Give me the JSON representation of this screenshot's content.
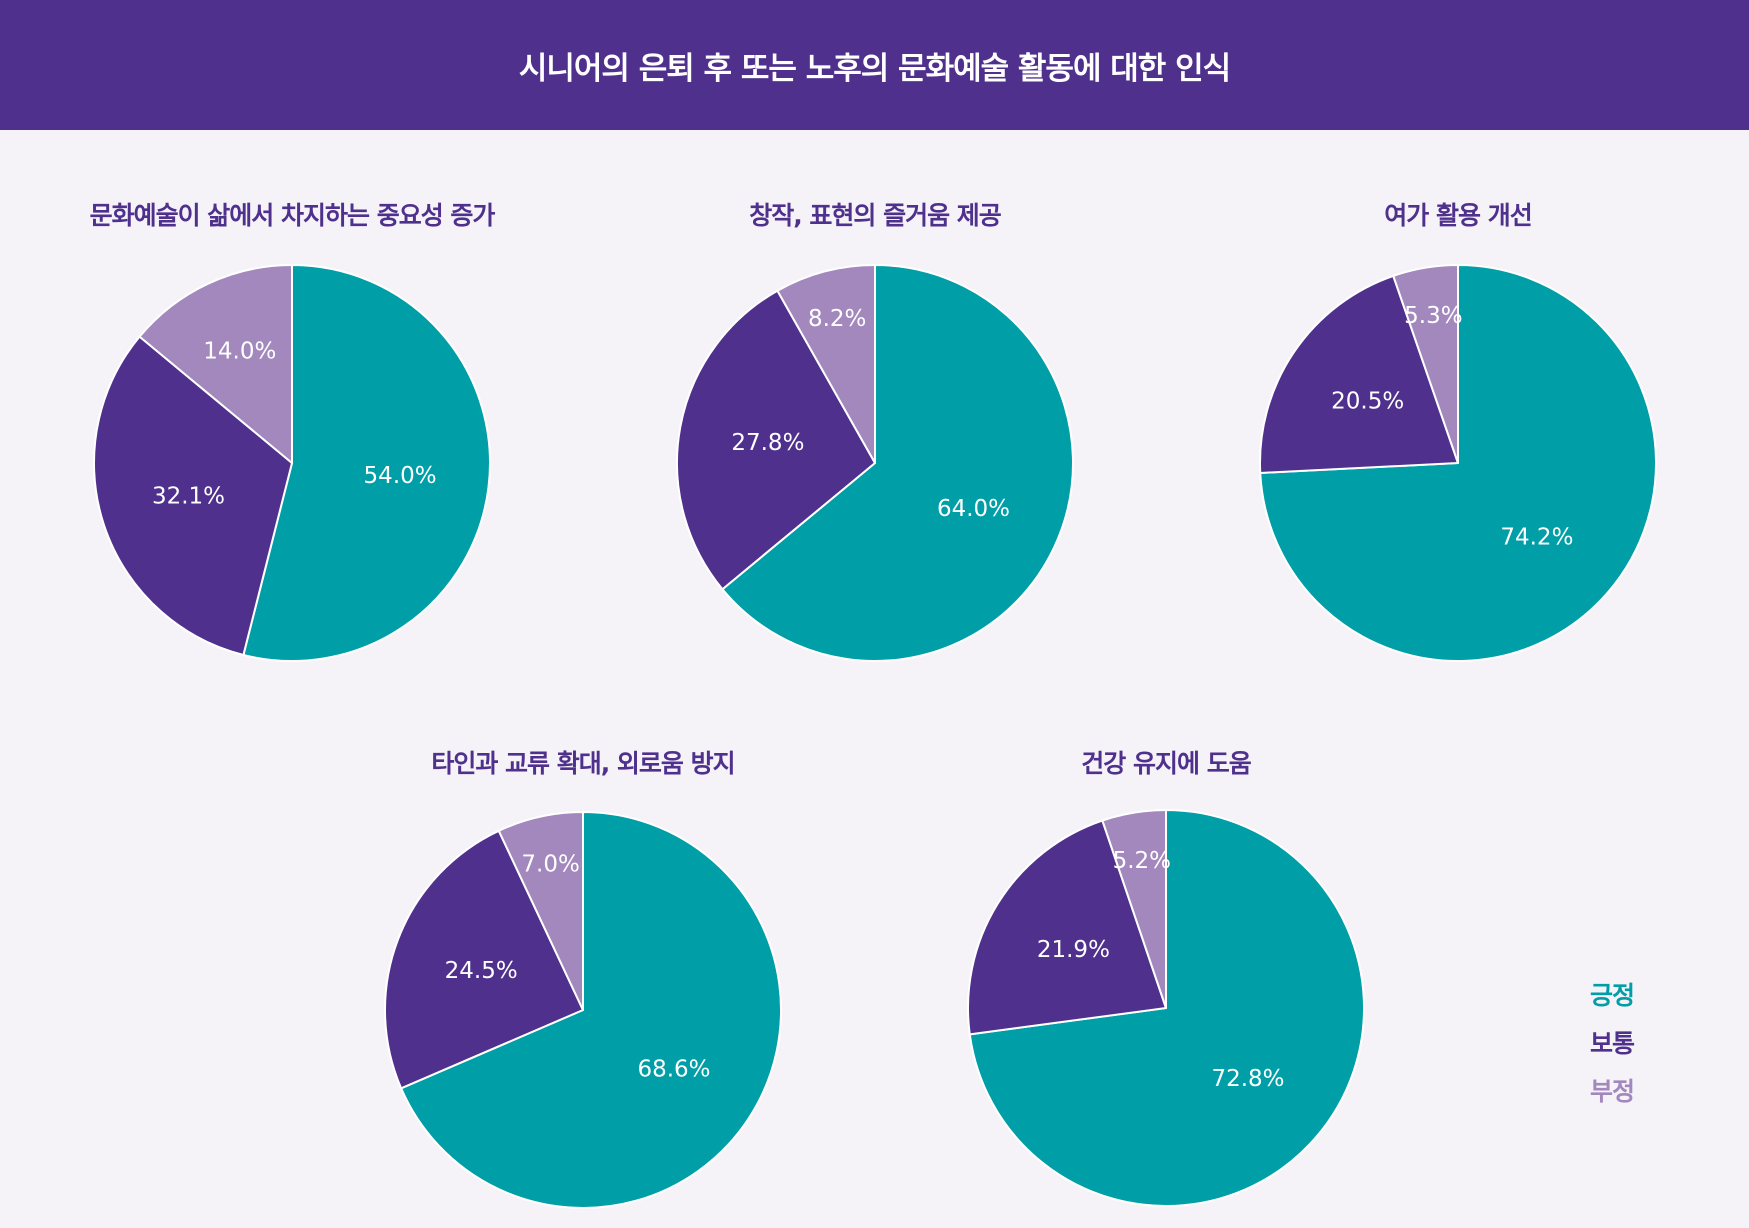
{
  "header": {
    "title": "시니어의 은퇴 후 또는 노후의 문화예술 활동에 대한 인식"
  },
  "colors": {
    "header_bg": "#4f318d",
    "background": "#f5f3f8",
    "positive": "#009ea7",
    "neutral": "#4f318d",
    "negative": "#a388bd",
    "title_text": "#4f318d"
  },
  "legend": {
    "items": [
      {
        "label": "긍정",
        "color": "#009ea7"
      },
      {
        "label": "보통",
        "color": "#4f318d"
      },
      {
        "label": "부정",
        "color": "#a388bd"
      }
    ]
  },
  "chart_data": [
    {
      "type": "pie",
      "title": "문화예술이 삶에서 차지하는 중요성 증가",
      "categories": [
        "긍정",
        "보통",
        "부정"
      ],
      "values": [
        54.0,
        32.1,
        14.0
      ],
      "labels": [
        "54.0%",
        "32.1%",
        "14.0%"
      ]
    },
    {
      "type": "pie",
      "title": "창작, 표현의 즐거움 제공",
      "categories": [
        "긍정",
        "보통",
        "부정"
      ],
      "values": [
        64.0,
        27.8,
        8.2
      ],
      "labels": [
        "64.0%",
        "27.8%",
        "8.2%"
      ]
    },
    {
      "type": "pie",
      "title": "여가 활용 개선",
      "categories": [
        "긍정",
        "보통",
        "부정"
      ],
      "values": [
        74.2,
        20.5,
        5.3
      ],
      "labels": [
        "74.2%",
        "20.5%",
        "5.3%"
      ]
    },
    {
      "type": "pie",
      "title": "타인과 교류 확대, 외로움 방지",
      "categories": [
        "긍정",
        "보통",
        "부정"
      ],
      "values": [
        68.6,
        24.5,
        7.0
      ],
      "labels": [
        "68.6%",
        "24.5%",
        "7.0%"
      ]
    },
    {
      "type": "pie",
      "title": "건강 유지에 도움",
      "categories": [
        "긍정",
        "보통",
        "부정"
      ],
      "values": [
        72.8,
        21.9,
        5.2
      ],
      "labels": [
        "72.8%",
        "21.9%",
        "5.2%"
      ]
    }
  ]
}
